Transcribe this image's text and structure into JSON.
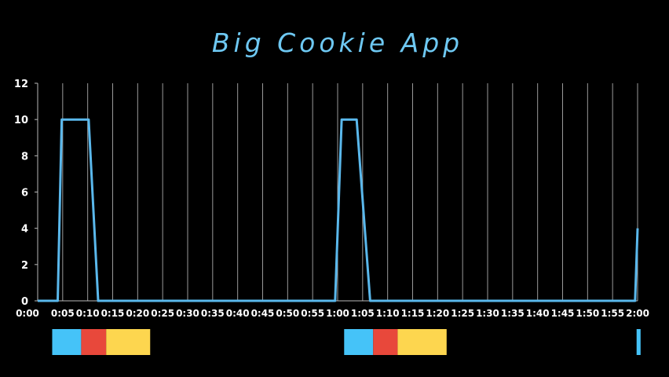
{
  "chart_data": {
    "type": "line",
    "title": "Big Cookie App",
    "xlabel": "",
    "ylabel": "",
    "x_unit": "seconds",
    "xlim": [
      0,
      120
    ],
    "ylim": [
      0,
      12
    ],
    "y_ticks": [
      0,
      2,
      4,
      6,
      8,
      10,
      12
    ],
    "x_tick_labels": [
      "0:00",
      "0:05",
      "0:10",
      "0:15",
      "0:20",
      "0:25",
      "0:30",
      "0:35",
      "0:40",
      "0:45",
      "0:50",
      "0:55",
      "1:00",
      "1:05",
      "1:10",
      "1:15",
      "1:20",
      "1:25",
      "1:30",
      "1:35",
      "1:40",
      "1:45",
      "1:50",
      "1:55",
      "2:00"
    ],
    "grid": "vertical",
    "series": [
      {
        "color": "#5ab8ec",
        "x": [
          0,
          4.0,
          4.8,
          10.2,
          12.1,
          59.5,
          60.8,
          63.8,
          66.5,
          119.5,
          120
        ],
        "y": [
          0,
          0,
          10,
          10,
          0,
          0,
          10,
          10,
          0,
          0,
          4
        ]
      }
    ],
    "timeline_segments": [
      {
        "start": 2.9,
        "end": 8.7,
        "color": "#45c3f8"
      },
      {
        "start": 8.7,
        "end": 13.7,
        "color": "#e8483b"
      },
      {
        "start": 13.7,
        "end": 22.5,
        "color": "#fdd64f"
      },
      {
        "start": 61.3,
        "end": 67.1,
        "color": "#45c3f8"
      },
      {
        "start": 67.1,
        "end": 72.0,
        "color": "#e8483b"
      },
      {
        "start": 72.0,
        "end": 81.8,
        "color": "#fdd64f"
      },
      {
        "start": 119.8,
        "end": 120.6,
        "color": "#45c3f8"
      }
    ]
  }
}
